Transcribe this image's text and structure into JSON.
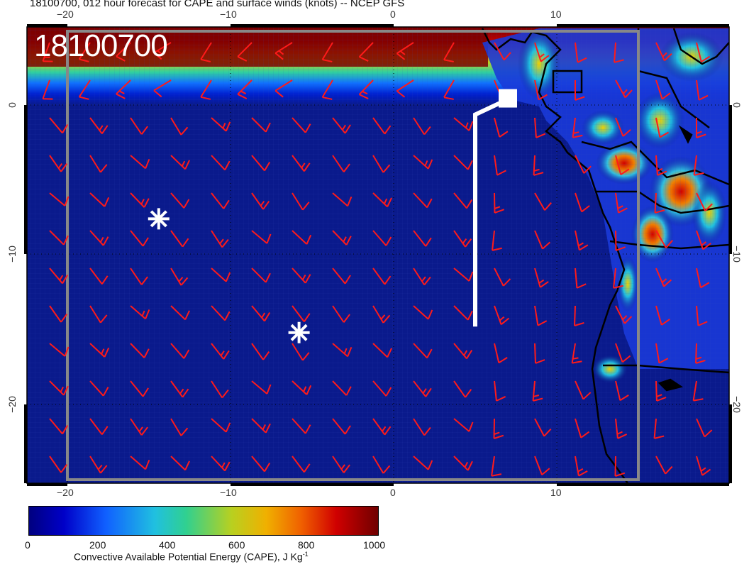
{
  "title": "18100700, 012 hour forecast for CAPE and surface winds (knots) -- NCEP GFS",
  "date_label": "18100700",
  "x_ticks_top": [
    {
      "label": "−20",
      "lon": -20
    },
    {
      "label": "−10",
      "lon": -10
    },
    {
      "label": "0",
      "lon": 0
    },
    {
      "label": "10",
      "lon": 10
    }
  ],
  "x_ticks_bottom": [
    {
      "label": "−20",
      "lon": -20
    },
    {
      "label": "−10",
      "lon": -10
    },
    {
      "label": "0",
      "lon": 0
    },
    {
      "label": "10",
      "lon": 10
    }
  ],
  "y_ticks": [
    {
      "label": "0",
      "lat": 0
    },
    {
      "label": "−10",
      "lat": -10
    },
    {
      "label": "−20",
      "lat": -20
    }
  ],
  "colorbar": {
    "ticks": [
      "0",
      "200",
      "400",
      "600",
      "800",
      "1000"
    ],
    "label_main": "Convective Available Potential Energy (CAPE), J Kg",
    "label_sup": "-1",
    "range": [
      0,
      1000
    ]
  },
  "markers": [
    {
      "name": "star-marker-1",
      "lon": -14.4,
      "lat": -7.6
    },
    {
      "name": "star-marker-2",
      "lon": -5.8,
      "lat": -15.2
    }
  ],
  "flight_track": {
    "lon_start": 5.0,
    "lat_start": -14.8,
    "lon_end": 7.0,
    "lat_end": 0.4
  },
  "colors": {
    "wind_barb": "#ff1a1a",
    "ocean": "#0a1a8c",
    "marker": "#ffffff",
    "border": "#000000"
  }
}
